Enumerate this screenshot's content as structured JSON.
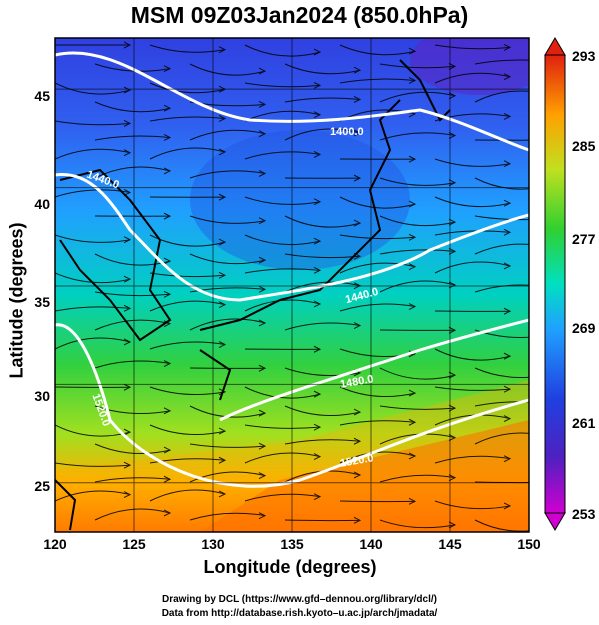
{
  "title": "MSM 09Z03Jan2024 (850.0hPa)",
  "axes": {
    "xlabel": "Longitude (degrees)",
    "ylabel": "Latitude  (degrees)",
    "xticks": [
      "120",
      "125",
      "130",
      "135",
      "140",
      "145",
      "150"
    ],
    "yticks": [
      "45",
      "40",
      "35",
      "30",
      "25"
    ],
    "xlim": [
      120,
      150
    ],
    "ylim": [
      22.5,
      47.6
    ]
  },
  "colorbar": {
    "ticks": [
      "293",
      "285",
      "277",
      "269",
      "261",
      "253"
    ],
    "range": [
      253,
      293
    ],
    "colors": [
      "#d000d0",
      "#3030e0",
      "#20a0ff",
      "#00e0c0",
      "#30d030",
      "#c0e020",
      "#ffa000",
      "#ff4000",
      "#e02010"
    ]
  },
  "contour_labels": [
    "1400.0",
    "1440.0",
    "1440.0",
    "1480.0",
    "1520.0",
    "1520.0"
  ],
  "credits": {
    "line1": "Drawing by DCL (https://www.gfd–dennou.org/library/dcl/)",
    "line2": "Data from http://database.rish.kyoto–u.ac.jp/arch/jmadata/"
  },
  "chart_data": {
    "type": "heatmap",
    "title": "MSM 09Z03Jan2024 (850.0hPa)",
    "xlabel": "Longitude (degrees)",
    "ylabel": "Latitude  (degrees)",
    "xlim": [
      120,
      150
    ],
    "ylim": [
      22.5,
      47.6
    ],
    "colorbar_range": [
      253,
      293
    ],
    "contour_levels": [
      1400,
      1440,
      1480,
      1520
    ],
    "grid": true
  }
}
